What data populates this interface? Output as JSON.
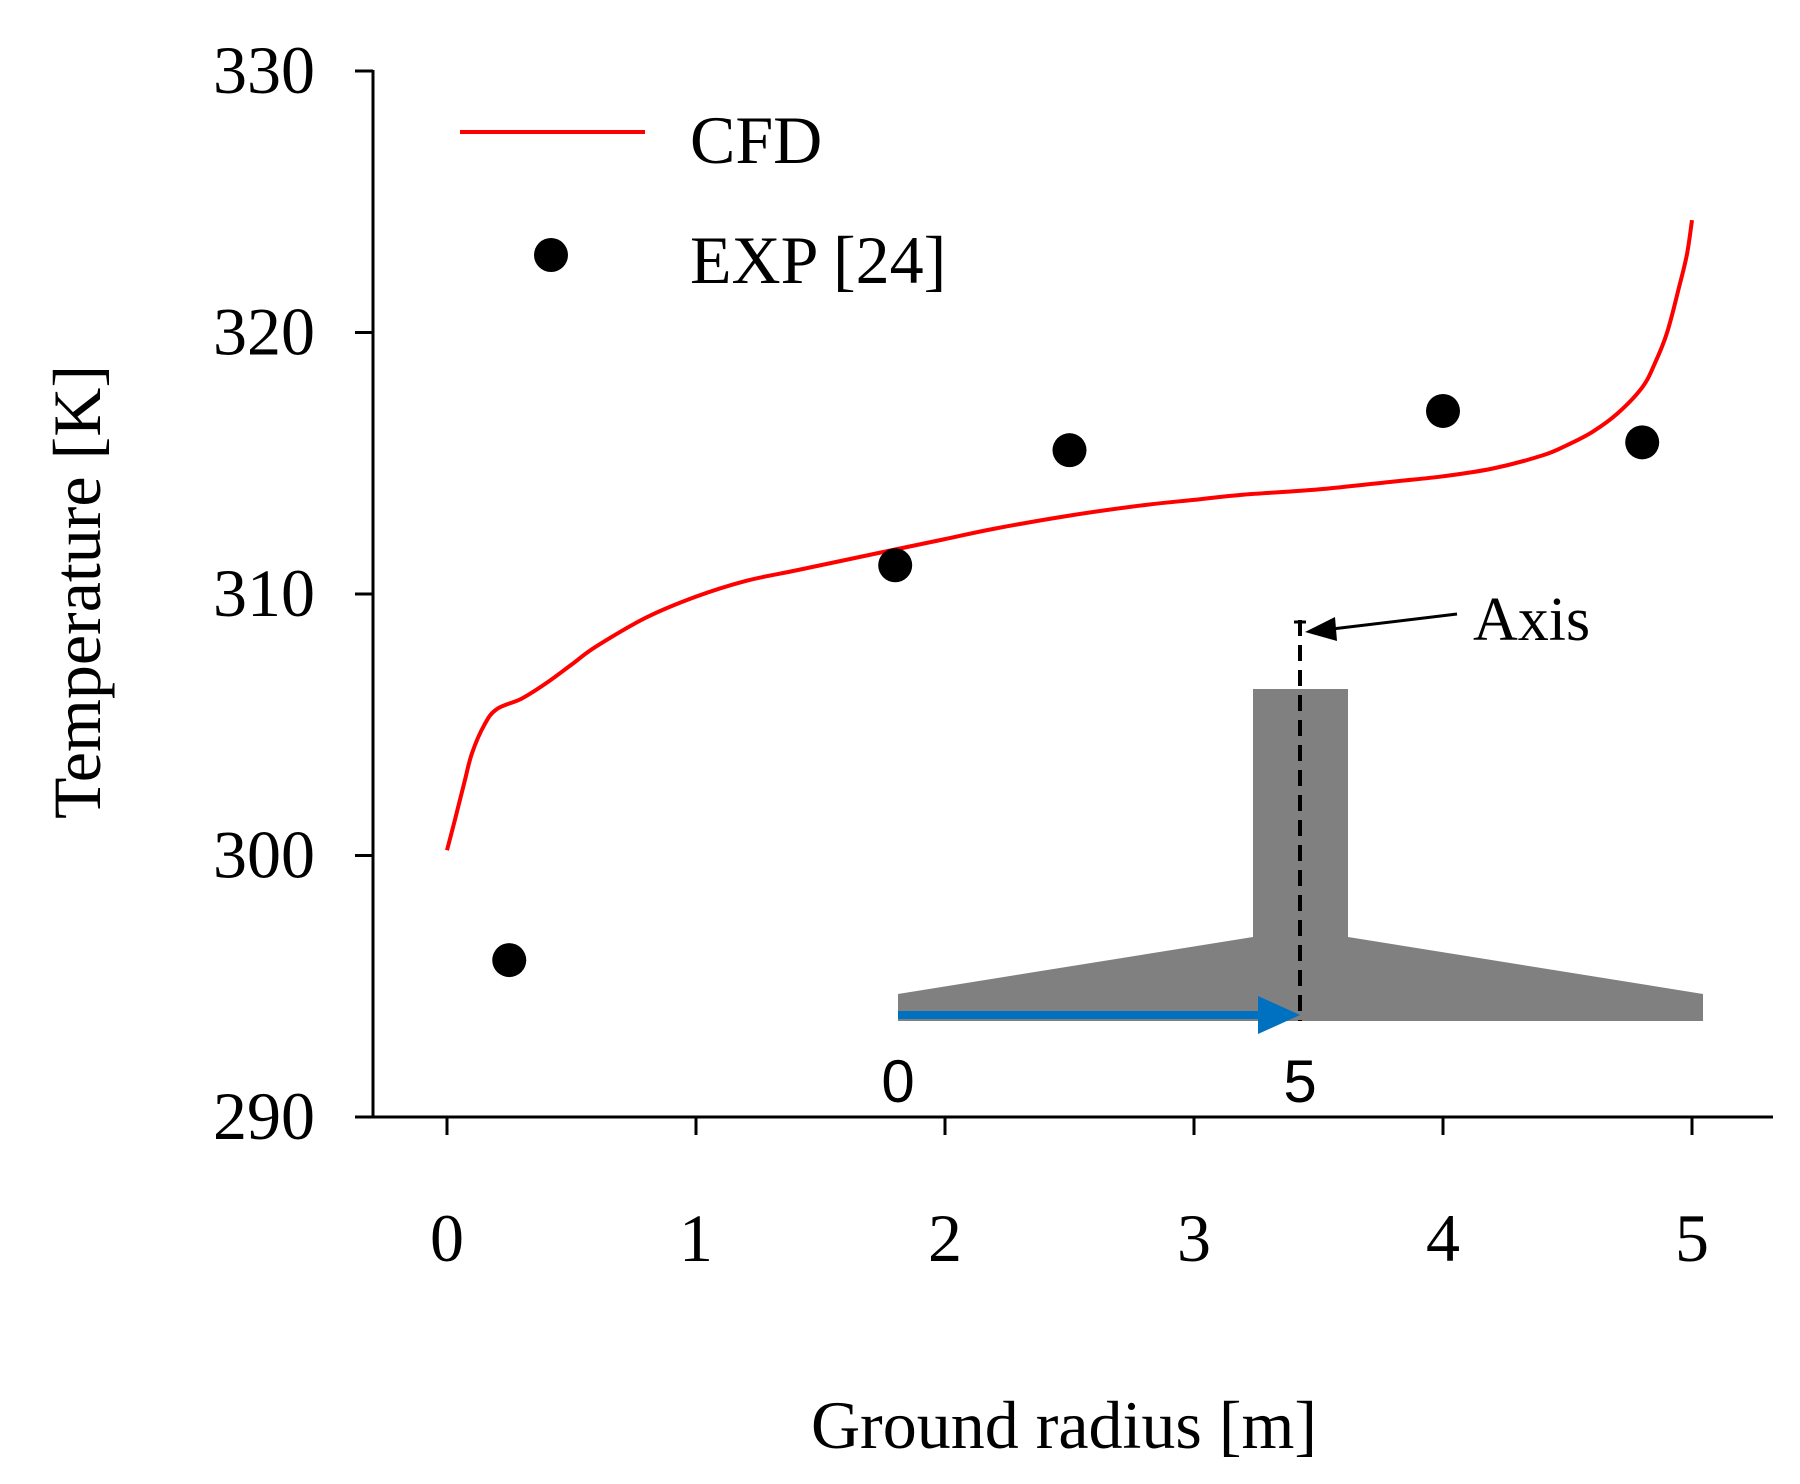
{
  "chart_data": {
    "type": "line",
    "xlabel": "Ground radius [m]",
    "ylabel": "Temperature [K]",
    "xlim": [
      -0.3,
      5.3
    ],
    "ylim": [
      290,
      330
    ],
    "xticks": [
      0,
      1,
      2,
      3,
      4,
      5
    ],
    "xtick_labels": [
      "0",
      "1",
      "2",
      "3",
      "4",
      "5"
    ],
    "yticks": [
      290,
      300,
      310,
      320,
      330
    ],
    "ytick_labels": [
      "290",
      "300",
      "310",
      "320",
      "330"
    ],
    "grid": false,
    "legend_position": "top-left",
    "series": [
      {
        "name": "CFD",
        "kind": "line",
        "color": "#ff0000",
        "x": [
          0.0,
          0.03,
          0.07,
          0.1,
          0.15,
          0.2,
          0.3,
          0.4,
          0.5,
          0.6,
          0.8,
          1.0,
          1.2,
          1.4,
          1.6,
          1.8,
          2.0,
          2.2,
          2.5,
          2.8,
          3.0,
          3.2,
          3.5,
          3.8,
          4.0,
          4.2,
          4.4,
          4.5,
          4.6,
          4.7,
          4.8,
          4.85,
          4.9,
          4.95,
          4.98,
          5.0
        ],
        "y": [
          300.2,
          301.3,
          302.8,
          303.9,
          305.0,
          305.6,
          306.0,
          306.6,
          307.3,
          308.0,
          309.1,
          309.9,
          310.5,
          310.9,
          311.3,
          311.7,
          312.1,
          312.5,
          313.0,
          313.4,
          313.6,
          313.8,
          314.0,
          314.3,
          314.5,
          314.8,
          315.3,
          315.7,
          316.2,
          316.9,
          317.9,
          318.8,
          320.0,
          321.8,
          323.0,
          324.3
        ]
      },
      {
        "name": "EXP [24]",
        "kind": "scatter",
        "color": "#000000",
        "x": [
          0.25,
          1.8,
          2.5,
          4.0,
          4.8
        ],
        "y": [
          296.0,
          311.1,
          315.5,
          317.0,
          315.8
        ]
      }
    ],
    "inset": {
      "axis_label": "Axis",
      "start_label": "0",
      "end_label": "5",
      "fill_color": "#808080",
      "arrow_color": "#0070c0"
    }
  }
}
